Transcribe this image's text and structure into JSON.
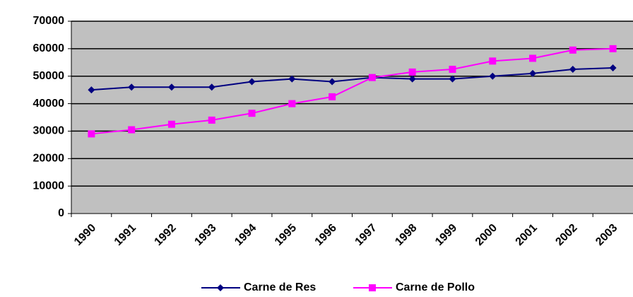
{
  "chart_data": {
    "type": "line",
    "categories": [
      "1990",
      "1991",
      "1992",
      "1993",
      "1994",
      "1995",
      "1996",
      "1997",
      "1998",
      "1999",
      "2000",
      "2001",
      "2002",
      "2003"
    ],
    "series": [
      {
        "name": "Carne de Res",
        "color": "#000080",
        "marker": "diamond",
        "values": [
          45000,
          46000,
          46000,
          46000,
          48000,
          49000,
          48000,
          49500,
          49000,
          49000,
          50000,
          51000,
          52500,
          53000
        ]
      },
      {
        "name": "Carne de Pollo",
        "color": "#ff00ff",
        "marker": "square",
        "values": [
          29000,
          30500,
          32500,
          34000,
          36500,
          40000,
          42500,
          49500,
          51500,
          52500,
          55500,
          56500,
          59500,
          60000
        ]
      }
    ],
    "ylim": [
      0,
      70000
    ],
    "yticks": [
      0,
      10000,
      20000,
      30000,
      40000,
      50000,
      60000,
      70000
    ],
    "grid": true,
    "plot_background": "#c0c0c0",
    "legend": "bottom"
  }
}
